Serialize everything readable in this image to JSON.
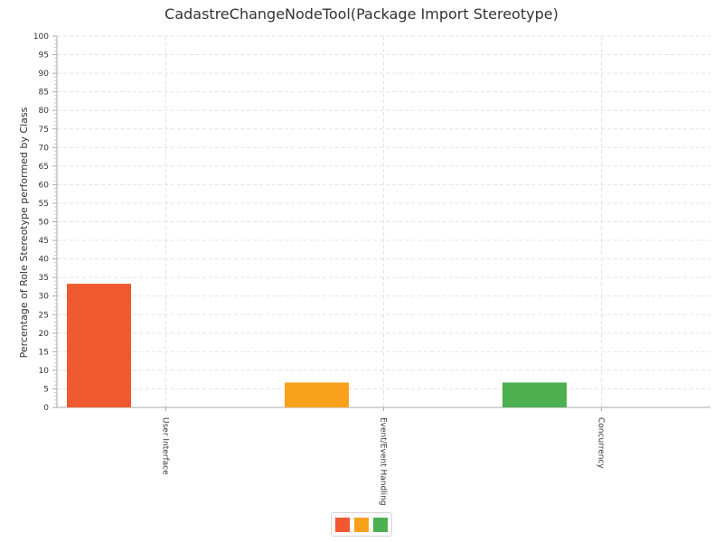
{
  "chart_data": {
    "type": "bar",
    "title": "CadastreChangeNodeTool(Package Import Stereotype)",
    "ylabel": "Percentage of Role Stereotype performed by Class",
    "xlabel": "",
    "ylim": [
      0,
      100
    ],
    "ytick_step": 5,
    "grid": true,
    "legend_position": "bottom",
    "categories": [
      "User Interface",
      "Event/Event Handling",
      "Concurrency"
    ],
    "values": [
      33.3,
      6.7,
      6.7
    ],
    "colors": [
      "#f0582f",
      "#f9a11b",
      "#4caf50"
    ]
  }
}
